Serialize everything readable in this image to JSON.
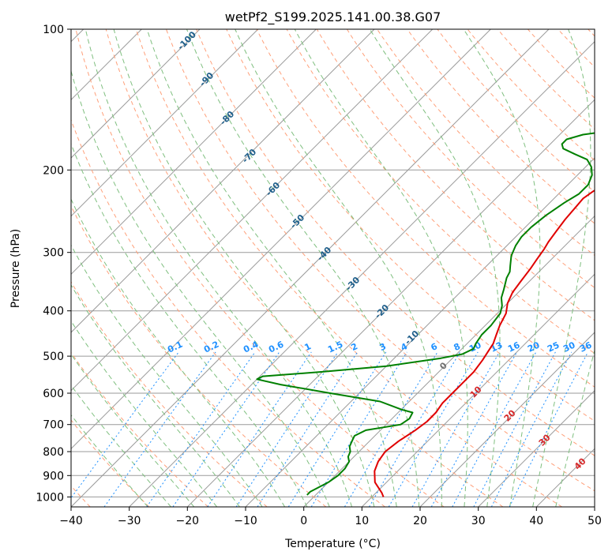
{
  "chart_data": {
    "type": "line",
    "title": "wetPf2_S199.2025.141.00.38.G07",
    "xlabel": "Temperature (°C)",
    "ylabel": "Pressure (hPa)",
    "xlim": [
      -40,
      50
    ],
    "ylim": [
      1050,
      100
    ],
    "y_scale": "log",
    "grid": true,
    "xticks": [
      "−40",
      "−30",
      "−20",
      "−10",
      "0",
      "10",
      "20",
      "30",
      "40",
      "50"
    ],
    "yticks": [
      "100",
      "200",
      "300",
      "400",
      "500",
      "600",
      "700",
      "800",
      "900",
      "1000"
    ],
    "series": [
      {
        "color": "#e00000",
        "points": [
          [
            12,
            1000
          ],
          [
            11,
            980
          ],
          [
            8,
            930
          ],
          [
            6,
            880
          ],
          [
            5,
            840
          ],
          [
            4.5,
            800
          ],
          [
            5,
            760
          ],
          [
            6,
            720
          ],
          [
            6.5,
            690
          ],
          [
            6.5,
            660
          ],
          [
            6,
            630
          ],
          [
            6,
            600
          ],
          [
            6,
            570
          ],
          [
            6,
            540
          ],
          [
            5.5,
            510
          ],
          [
            5,
            490
          ],
          [
            4.5,
            470
          ],
          [
            3.5,
            450
          ],
          [
            2.5,
            430
          ],
          [
            1.5,
            405
          ],
          [
            0,
            385
          ],
          [
            -1,
            365
          ],
          [
            -1.5,
            345
          ],
          [
            -2,
            325
          ],
          [
            -2.5,
            310
          ],
          [
            -3,
            295
          ],
          [
            -3.5,
            285
          ],
          [
            -4,
            270
          ],
          [
            -4.5,
            255
          ],
          [
            -4.8,
            240
          ],
          [
            -5,
            230
          ],
          [
            -4.5,
            222
          ],
          [
            -3.5,
            213
          ],
          [
            -2,
            205
          ],
          [
            0,
            198
          ],
          [
            3,
            191
          ],
          [
            7,
            185
          ],
          [
            10,
            180
          ],
          [
            14,
            173
          ],
          [
            16,
            166
          ],
          [
            17,
            160
          ],
          [
            18,
            155
          ],
          [
            19,
            150
          ],
          [
            20,
            145
          ],
          [
            22,
            135
          ],
          [
            24,
            125
          ],
          [
            26,
            115
          ],
          [
            29,
            105
          ],
          [
            31,
            100
          ]
        ]
      },
      {
        "color": "#008000",
        "points": [
          [
            -1.5,
            990
          ],
          [
            -1.5,
            975
          ],
          [
            -1,
            960
          ],
          [
            0,
            930
          ],
          [
            0.5,
            900
          ],
          [
            0.5,
            870
          ],
          [
            0,
            840
          ],
          [
            -1,
            820
          ],
          [
            -1.5,
            800
          ],
          [
            -2.5,
            780
          ],
          [
            -3,
            760
          ],
          [
            -3.5,
            740
          ],
          [
            -2.5,
            720
          ],
          [
            0,
            710
          ],
          [
            2.5,
            700
          ],
          [
            3,
            680
          ],
          [
            2.5,
            660
          ],
          [
            0,
            650
          ],
          [
            -5,
            625
          ],
          [
            -15,
            600
          ],
          [
            -25,
            575
          ],
          [
            -30,
            560
          ],
          [
            -29.5,
            552
          ],
          [
            -20,
            540
          ],
          [
            -10,
            525
          ],
          [
            -2,
            505
          ],
          [
            1,
            495
          ],
          [
            2,
            482
          ],
          [
            1.5,
            470
          ],
          [
            1,
            450
          ],
          [
            1,
            430
          ],
          [
            0.5,
            405
          ],
          [
            -0.5,
            390
          ],
          [
            -2,
            375
          ],
          [
            -3,
            360
          ],
          [
            -4.5,
            340
          ],
          [
            -5,
            330
          ],
          [
            -6,
            320
          ],
          [
            -7.5,
            305
          ],
          [
            -8.5,
            290
          ],
          [
            -9,
            278
          ],
          [
            -9,
            265
          ],
          [
            -8.5,
            250
          ],
          [
            -7.5,
            235
          ],
          [
            -6.5,
            225
          ],
          [
            -6.5,
            215
          ],
          [
            -7.5,
            205
          ],
          [
            -9,
            197
          ],
          [
            -11,
            190
          ],
          [
            -14,
            185
          ],
          [
            -17,
            180
          ],
          [
            -18,
            176
          ],
          [
            -18,
            172
          ],
          [
            -16,
            168
          ],
          [
            -12,
            165
          ],
          [
            -10,
            160
          ],
          [
            -8,
            150
          ],
          [
            -5,
            138
          ],
          [
            -2,
            125
          ],
          [
            1,
            112
          ],
          [
            3,
            103
          ],
          [
            3.5,
            100
          ]
        ]
      }
    ],
    "background_lines": {
      "dry_adiabat_labels": [
        "-100",
        "-90",
        "-80",
        "-70",
        "-60",
        "-50",
        "-40",
        "-30",
        "-20",
        "-10"
      ],
      "mixing_ratio_labels": [
        "0.1",
        "0.2",
        "0.4",
        "0.6",
        "1",
        "1.5",
        "2",
        "3",
        "4",
        "6",
        "8",
        "10",
        "13",
        "16",
        "20",
        "25",
        "30",
        "36"
      ],
      "moist_adiabat_labels": [
        "0",
        "10",
        "20",
        "30",
        "40"
      ]
    },
    "colors": {
      "temperature": "#e00000",
      "dewpoint": "#008000",
      "isotherm": "#9a9a9a",
      "dry_adiabat": "#ffa07a",
      "moist_adiabat": "#7fbf7f",
      "mixing_ratio": "#1e90ff",
      "dry_label": "#1f5f8b",
      "moist_label": "#d62728"
    }
  }
}
